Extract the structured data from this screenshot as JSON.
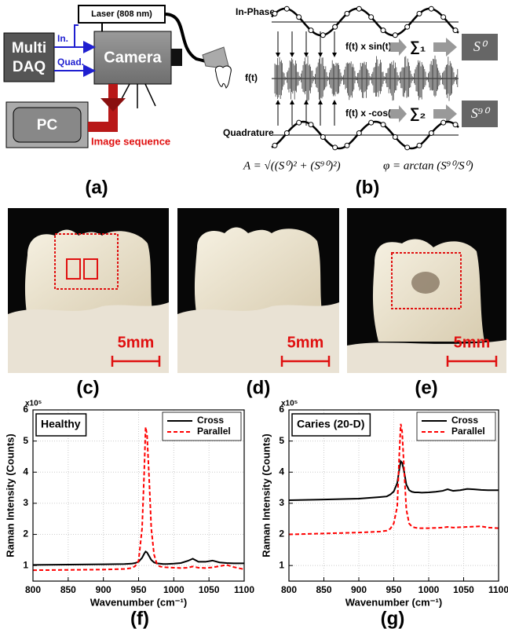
{
  "panel_labels": [
    "(a)",
    "(b)",
    "(c)",
    "(d)",
    "(e)",
    "(f)",
    "(g)"
  ],
  "diagram_a": {
    "laser": "Laser (808 nm)",
    "daq": [
      "Multi",
      "DAQ"
    ],
    "in": "In.",
    "quad": "Quad.",
    "camera": "Camera",
    "pc": "PC",
    "image_sequence": "Image sequence"
  },
  "diagram_b": {
    "in_phase": "In-Phase",
    "ft": "f(t)",
    "quadrature": "Quadrature",
    "sin": "f(t) x sin(t)",
    "cos": "f(t) x -cos(t)",
    "sum1": "∑₁",
    "sum2": "∑₂",
    "s0": "S⁰",
    "s90": "S⁹⁰",
    "amplitude": "A = √((S⁰)² + (S⁹⁰)²)",
    "phase": "φ = arctan (S⁹⁰/S⁰)"
  },
  "photos": {
    "scale_labels": [
      "5mm",
      "5mm",
      "5mm"
    ]
  },
  "chart_data": [
    {
      "type": "line",
      "annotation": "Healthy",
      "multiplier": "x10⁵",
      "xlabel": "Wavenumber (cm⁻¹)",
      "ylabel": "Raman Intensity (Counts)",
      "x": [
        800,
        850,
        900,
        930,
        940,
        945,
        950,
        955,
        958,
        960,
        962,
        965,
        968,
        972,
        976,
        980,
        985,
        990,
        1000,
        1010,
        1020,
        1027,
        1035,
        1045,
        1055,
        1065,
        1075,
        1085,
        1100
      ],
      "series": [
        {
          "name": "Cross",
          "color": "#000000",
          "linestyle": "solid",
          "values": [
            1.02,
            1.03,
            1.04,
            1.05,
            1.06,
            1.08,
            1.12,
            1.25,
            1.38,
            1.45,
            1.42,
            1.3,
            1.18,
            1.1,
            1.07,
            1.06,
            1.05,
            1.05,
            1.06,
            1.08,
            1.15,
            1.22,
            1.12,
            1.12,
            1.16,
            1.1,
            1.08,
            1.07,
            1.07
          ]
        },
        {
          "name": "Parallel",
          "color": "#ff0000",
          "linestyle": "dashed",
          "values": [
            0.85,
            0.86,
            0.87,
            0.89,
            0.92,
            0.98,
            1.15,
            2.2,
            4.0,
            5.45,
            5.2,
            3.8,
            2.2,
            1.35,
            1.05,
            0.97,
            0.95,
            0.94,
            0.93,
            0.92,
            0.93,
            0.97,
            0.93,
            0.92,
            0.94,
            0.98,
            1.02,
            0.95,
            0.88
          ]
        }
      ],
      "xlim": [
        800,
        1100
      ],
      "ylim": [
        0.5,
        6
      ],
      "xticks": [
        800,
        850,
        900,
        950,
        1000,
        1050,
        1100
      ],
      "yticks": [
        1,
        2,
        3,
        4,
        5,
        6
      ],
      "grid": true,
      "legend": "upper right"
    },
    {
      "type": "line",
      "annotation": "Caries (20-D)",
      "multiplier": "x10⁵",
      "xlabel": "Wavenumber (cm⁻¹)",
      "ylabel": "Raman Intensity (Counts)",
      "x": [
        800,
        850,
        900,
        930,
        940,
        945,
        950,
        955,
        958,
        960,
        962,
        965,
        968,
        972,
        976,
        980,
        985,
        990,
        1000,
        1010,
        1020,
        1027,
        1035,
        1045,
        1055,
        1065,
        1075,
        1085,
        1100
      ],
      "series": [
        {
          "name": "Cross",
          "color": "#000000",
          "linestyle": "solid",
          "values": [
            3.1,
            3.12,
            3.15,
            3.2,
            3.22,
            3.28,
            3.38,
            3.65,
            4.1,
            4.35,
            4.3,
            4.0,
            3.6,
            3.42,
            3.37,
            3.35,
            3.35,
            3.34,
            3.35,
            3.37,
            3.4,
            3.45,
            3.4,
            3.42,
            3.46,
            3.45,
            3.43,
            3.42,
            3.42
          ]
        },
        {
          "name": "Parallel",
          "color": "#ff0000",
          "linestyle": "dashed",
          "values": [
            2.0,
            2.03,
            2.06,
            2.09,
            2.12,
            2.18,
            2.35,
            2.9,
            4.6,
            5.55,
            5.3,
            4.0,
            2.8,
            2.35,
            2.25,
            2.22,
            2.2,
            2.2,
            2.2,
            2.21,
            2.22,
            2.24,
            2.22,
            2.23,
            2.24,
            2.25,
            2.26,
            2.22,
            2.2
          ]
        }
      ],
      "xlim": [
        800,
        1100
      ],
      "ylim": [
        0.5,
        6
      ],
      "xticks": [
        800,
        850,
        900,
        950,
        1000,
        1050,
        1100
      ],
      "yticks": [
        1,
        2,
        3,
        4,
        5,
        6
      ],
      "grid": true,
      "legend": "upper right"
    }
  ]
}
